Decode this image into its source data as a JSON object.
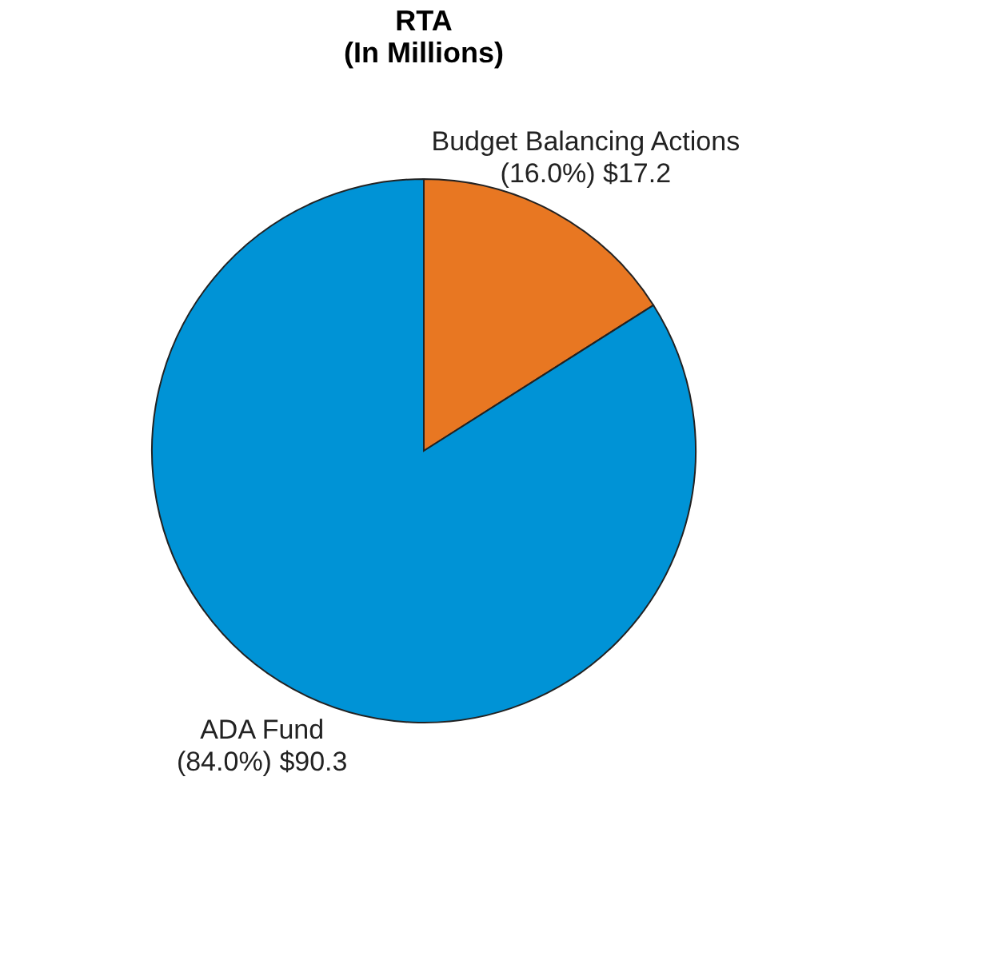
{
  "chart_data": {
    "type": "pie",
    "title": "RTA\n(In Millions)",
    "categories": [
      "Budget Balancing Actions",
      "ADA Fund"
    ],
    "values": [
      17.2,
      90.3
    ],
    "colors": [
      "#e87722",
      "#0093d6"
    ],
    "value_labels": [
      "(16.0%) $17.2",
      "(84.0%) $90.3"
    ]
  }
}
